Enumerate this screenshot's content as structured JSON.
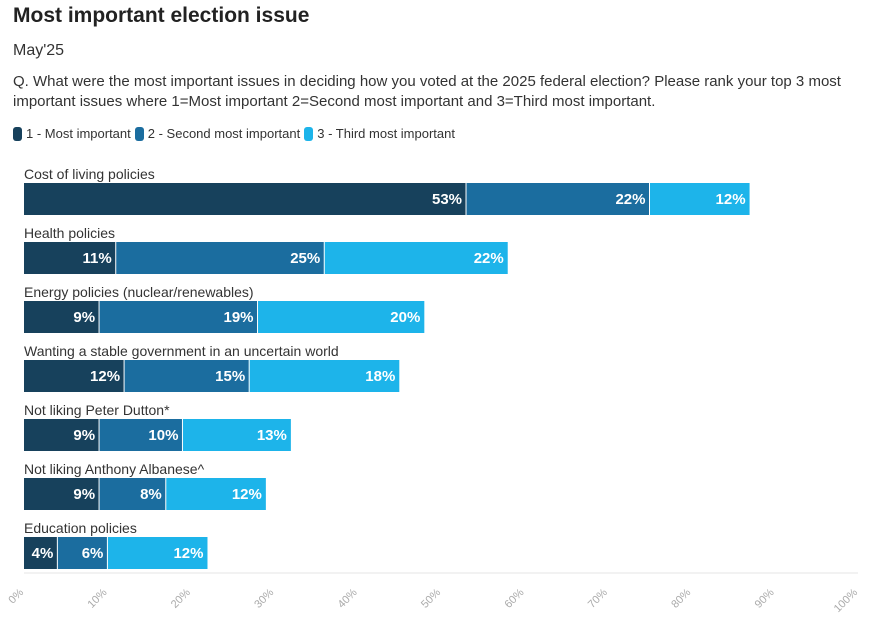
{
  "chart_data": {
    "type": "bar",
    "orientation": "horizontal",
    "stacked": true,
    "title": "Most important election issue",
    "subtitle": "May'25",
    "question": "Q. What were the most important issues in deciding how you voted at the 2025 federal election? Please rank your top 3 most important issues where 1=Most important 2=Second most important and 3=Third most important.",
    "categories": [
      "Cost of living policies",
      "Health policies",
      "Energy policies (nuclear/renewables)",
      "Wanting a stable government in an uncertain world",
      "Not liking Peter Dutton*",
      "Not liking Anthony Albanese^",
      "Education policies"
    ],
    "series": [
      {
        "name": "1 - Most important",
        "color": "#17415c",
        "values": [
          53,
          11,
          9,
          12,
          9,
          9,
          4
        ]
      },
      {
        "name": "2 - Second most important",
        "color": "#1b6d9f",
        "values": [
          22,
          25,
          19,
          15,
          10,
          8,
          6
        ]
      },
      {
        "name": "3 - Third most important",
        "color": "#1db4ea",
        "values": [
          12,
          22,
          20,
          18,
          13,
          12,
          12
        ]
      }
    ],
    "value_suffix": "%",
    "xlim": [
      0,
      100
    ],
    "xticks": [
      "0%",
      "10%",
      "20%",
      "30%",
      "40%",
      "50%",
      "60%",
      "70%",
      "80%",
      "90%",
      "100%"
    ],
    "legend_position": "top-left",
    "grid": false
  }
}
